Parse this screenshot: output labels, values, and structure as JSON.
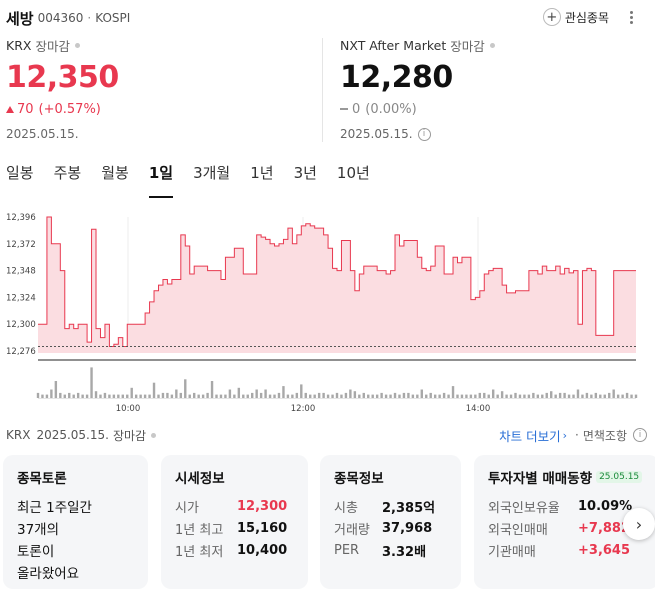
{
  "header": {
    "name": "세방",
    "code": "004360",
    "separator": "·",
    "market": "KOSPI",
    "watch_plus": "+",
    "watch_label": "관심종목"
  },
  "krx": {
    "exchange": "KRX",
    "status": "장마감",
    "price": "12,350",
    "change": "70",
    "change_pct": "(+0.57%)",
    "date": "2025.05.15."
  },
  "nxt": {
    "exchange": "NXT After Market",
    "status": "장마감",
    "price": "12,280",
    "change": "0",
    "change_pct": "(0.00%)",
    "date": "2025.05.15.",
    "info_glyph": "i"
  },
  "tabs": [
    "일봉",
    "주봉",
    "월봉",
    "1일",
    "3개월",
    "1년",
    "3년",
    "10년"
  ],
  "active_tab": 3,
  "chart_data": {
    "type": "area",
    "y_ticks": [
      "12,396",
      "12,372",
      "12,348",
      "12,324",
      "12,300",
      "12,276"
    ],
    "x_ticks": [
      "10:00",
      "12:00",
      "14:00"
    ],
    "ylim": [
      12270,
      12400
    ],
    "dashed_base": 12280,
    "line_color": "#e8384f",
    "fill_color": "#fbdde1",
    "price": [
      12300,
      12300,
      12396,
      12372,
      12372,
      12348,
      12296,
      12300,
      12296,
      12300,
      12300,
      12284,
      12385,
      12296,
      12288,
      12300,
      12280,
      12282,
      12288,
      12280,
      12300,
      12300,
      12300,
      12300,
      12310,
      12320,
      12330,
      12335,
      12340,
      12336,
      12340,
      12340,
      12380,
      12370,
      12345,
      12352,
      12352,
      12352,
      12348,
      12348,
      12348,
      12340,
      12360,
      12360,
      12368,
      12368,
      12345,
      12345,
      12345,
      12380,
      12378,
      12376,
      12372,
      12370,
      12372,
      12376,
      12386,
      12372,
      12380,
      12388,
      12390,
      12388,
      12386,
      12386,
      12380,
      12368,
      12350,
      12348,
      12375,
      12375,
      12348,
      12330,
      12345,
      12352,
      12352,
      12352,
      12348,
      12348,
      12345,
      12348,
      12380,
      12370,
      12375,
      12375,
      12375,
      12360,
      12350,
      12348,
      12352,
      12370,
      12370,
      12345,
      12345,
      12360,
      12355,
      12360,
      12360,
      12322,
      12324,
      12330,
      12345,
      12348,
      12350,
      12350,
      12335,
      12328,
      12328,
      12330,
      12330,
      12330,
      12348,
      12348,
      12345,
      12352,
      12348,
      12348,
      12352,
      12345,
      12350,
      12346,
      12348,
      12300,
      12348,
      12350,
      12348,
      12290,
      12290,
      12290,
      12290,
      12348,
      12348,
      12348,
      12348,
      12348,
      12348
    ],
    "volume": [
      3,
      2,
      2,
      5,
      10,
      3,
      2,
      3,
      2,
      3,
      2,
      2,
      18,
      4,
      2,
      3,
      2,
      2,
      2,
      2,
      2,
      6,
      2,
      2,
      2,
      2,
      9,
      2,
      3,
      3,
      2,
      5,
      3,
      11,
      2,
      3,
      2,
      2,
      3,
      10,
      2,
      2,
      2,
      5,
      2,
      6,
      2,
      2,
      3,
      5,
      3,
      5,
      2,
      2,
      3,
      7,
      2,
      2,
      3,
      8,
      3,
      2,
      2,
      3,
      3,
      2,
      2,
      3,
      2,
      3,
      5,
      4,
      2,
      3,
      2,
      2,
      2,
      3,
      2,
      2,
      3,
      2,
      3,
      3,
      2,
      2,
      5,
      2,
      3,
      2,
      2,
      3,
      2,
      7,
      2,
      2,
      2,
      2,
      2,
      3,
      3,
      2,
      5,
      2,
      4,
      2,
      2,
      3,
      2,
      2,
      2,
      3,
      2,
      2,
      3,
      4,
      2,
      3,
      3,
      2,
      2,
      5,
      2,
      3,
      2,
      3,
      2,
      2,
      3,
      5,
      2,
      2,
      3,
      2,
      2
    ]
  },
  "info_line": {
    "exchange": "KRX",
    "date": "2025.05.15.",
    "status": "장마감",
    "chart_more": "차트 더보기",
    "chevron": "›",
    "separator": "·",
    "disclaimer": "면책조항",
    "info_glyph": "i"
  },
  "cards": {
    "discussion": {
      "title": "종목토론",
      "line1": "최근 1주일간",
      "line2": "37개의",
      "line3": "토론이",
      "line4": "올라왔어요"
    },
    "quote": {
      "title": "시세정보",
      "rows": [
        {
          "label": "시가",
          "value": "12,300"
        },
        {
          "label": "1년 최고",
          "value": "15,160"
        },
        {
          "label": "1년 최저",
          "value": "10,400"
        }
      ]
    },
    "stock_info": {
      "title": "종목정보",
      "rows": [
        {
          "label": "시총",
          "value": "2,385억"
        },
        {
          "label": "거래량",
          "value": "37,968"
        },
        {
          "label": "PER",
          "value": "3.32배"
        }
      ]
    },
    "investor": {
      "title": "투자자별 매매동향",
      "badge": "25.05.15",
      "rows": [
        {
          "label": "외국인보유율",
          "value": "10.09%"
        },
        {
          "label": "외국인매매",
          "value": "+7,882"
        },
        {
          "label": "기관매매",
          "value": "+3,645"
        }
      ]
    },
    "next": "›"
  }
}
